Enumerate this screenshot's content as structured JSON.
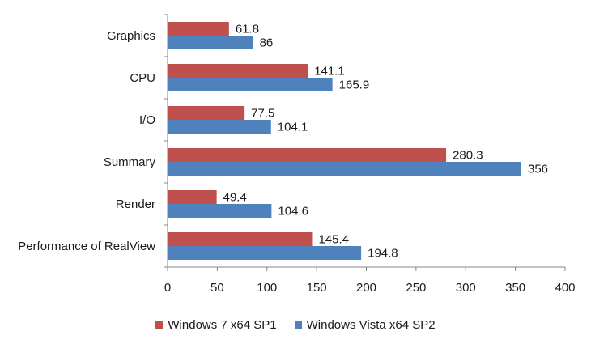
{
  "chart_data": {
    "type": "bar",
    "orientation": "horizontal",
    "categories": [
      "Graphics",
      "CPU",
      "I/O",
      "Summary",
      "Render",
      "Performance of RealView"
    ],
    "series": [
      {
        "name": "Windows 7 x64 SP1",
        "values": [
          61.8,
          141.1,
          77.5,
          280.3,
          49.4,
          145.4
        ],
        "labels": [
          "61.8",
          "141.1",
          "77.5",
          "280.3",
          "49.4",
          "145.4"
        ],
        "color": "#c0504d"
      },
      {
        "name": "Windows Vista x64 SP2",
        "values": [
          86,
          165.9,
          104.1,
          356,
          104.6,
          194.8
        ],
        "labels": [
          "86",
          "165.9",
          "104.1",
          "356",
          "104.6",
          "194.8"
        ],
        "color": "#4f81bd"
      }
    ],
    "xlim": [
      0,
      400
    ],
    "xticks": [
      "0",
      "50",
      "100",
      "150",
      "200",
      "250",
      "300",
      "350",
      "400"
    ],
    "title": "",
    "xlabel": "",
    "ylabel": "",
    "grid": false,
    "legend_position": "bottom"
  }
}
